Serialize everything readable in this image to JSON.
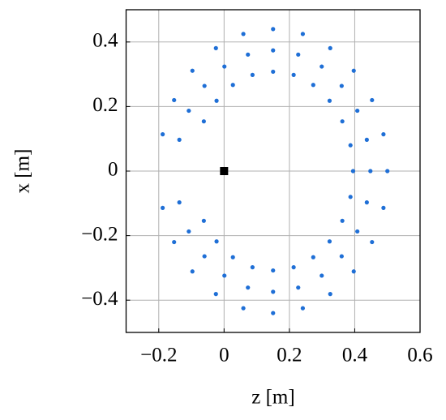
{
  "chart_data": {
    "type": "scatter",
    "xlabel": "z [m]",
    "ylabel": "x [m]",
    "xlim": [
      -0.3,
      0.6
    ],
    "ylim": [
      -0.5,
      0.5
    ],
    "xticks": [
      {
        "value": -0.2,
        "label": "−0.2"
      },
      0,
      0.2,
      0.4,
      0.6
    ],
    "yticks": [
      {
        "value": -0.4,
        "label": "−0.4"
      },
      {
        "value": -0.2,
        "label": "−0.2"
      },
      0,
      0.2,
      0.4
    ],
    "grid": true,
    "series": [
      {
        "color": "#1f6fd6",
        "marker": "circle",
        "x": [
          0.5,
          0.488,
          0.453,
          0.397,
          0.325,
          0.241,
          0.15,
          0.059,
          -0.025,
          -0.097,
          -0.153,
          -0.188,
          0.488,
          0.453,
          0.397,
          0.325,
          0.241,
          0.15,
          0.059,
          -0.025,
          -0.097,
          -0.153,
          -0.188,
          0.448,
          0.437,
          0.408,
          0.36,
          0.299,
          0.227,
          0.15,
          0.073,
          0.001,
          -0.06,
          -0.108,
          -0.137,
          0.437,
          0.408,
          0.36,
          0.299,
          0.227,
          0.15,
          0.073,
          0.001,
          -0.06,
          -0.108,
          -0.137,
          0.395,
          0.387,
          0.362,
          0.323,
          0.273,
          0.213,
          0.15,
          0.087,
          0.027,
          -0.023,
          -0.062,
          0.387,
          0.362,
          0.323,
          0.273,
          0.213,
          0.15,
          0.087,
          0.027,
          -0.023,
          -0.062
        ],
        "values": [
          0,
          0.114,
          0.22,
          0.311,
          0.381,
          0.425,
          0.44,
          0.425,
          0.381,
          0.311,
          0.22,
          0.114,
          -0.114,
          -0.22,
          -0.311,
          -0.381,
          -0.425,
          -0.44,
          -0.425,
          -0.381,
          -0.311,
          -0.22,
          -0.114,
          0,
          0.097,
          0.187,
          0.264,
          0.324,
          0.361,
          0.374,
          0.361,
          0.324,
          0.264,
          0.187,
          0.097,
          -0.097,
          -0.187,
          -0.264,
          -0.324,
          -0.361,
          -0.374,
          -0.361,
          -0.324,
          -0.264,
          -0.187,
          -0.097,
          0,
          0.08,
          0.154,
          0.218,
          0.267,
          0.298,
          0.308,
          0.298,
          0.267,
          0.218,
          0.154,
          -0.08,
          -0.154,
          -0.218,
          -0.267,
          -0.298,
          -0.308,
          -0.298,
          -0.267,
          -0.218,
          -0.154
        ]
      },
      {
        "color": "#000000",
        "marker": "square",
        "x": [
          0
        ],
        "values": [
          0
        ]
      }
    ]
  }
}
